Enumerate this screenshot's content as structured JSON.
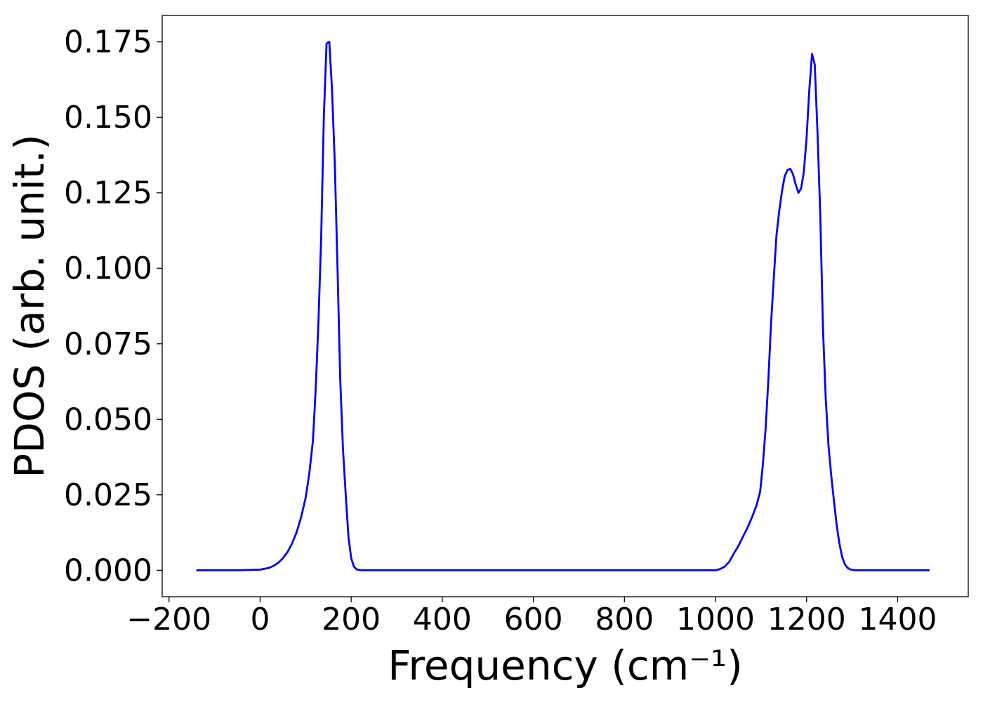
{
  "chart_data": {
    "type": "line",
    "title": "",
    "xlabel": "Frequency (cm⁻¹)",
    "ylabel": "PDOS (arb. unit.)",
    "xlim": [
      -215,
      1555
    ],
    "ylim": [
      -0.00875,
      0.18375
    ],
    "xticks": [
      -200,
      0,
      200,
      400,
      600,
      800,
      1000,
      1200,
      1400
    ],
    "xtick_labels": [
      "−200",
      "0",
      "200",
      "400",
      "600",
      "800",
      "1000",
      "1200",
      "1400"
    ],
    "yticks": [
      0.0,
      0.025,
      0.05,
      0.075,
      0.1,
      0.125,
      0.15,
      0.175
    ],
    "ytick_labels": [
      "0.000",
      "0.025",
      "0.050",
      "0.075",
      "0.100",
      "0.125",
      "0.150",
      "0.175"
    ],
    "grid": false,
    "legend": "none",
    "series": [
      {
        "color": "#0000ff",
        "x": [
          -140,
          -50,
          0,
          20,
          30,
          40,
          50,
          60,
          70,
          80,
          90,
          100,
          108,
          116,
          122,
          128,
          134,
          140,
          146,
          152,
          158,
          164,
          170,
          176,
          182,
          188,
          194,
          200,
          206,
          212,
          218,
          224,
          230,
          236,
          245,
          270,
          400,
          600,
          800,
          1000,
          1010,
          1020,
          1030,
          1040,
          1050,
          1060,
          1070,
          1080,
          1090,
          1098,
          1104,
          1110,
          1116,
          1122,
          1128,
          1134,
          1140,
          1146,
          1152,
          1158,
          1164,
          1170,
          1176,
          1182,
          1188,
          1194,
          1200,
          1206,
          1212,
          1218,
          1224,
          1230,
          1236,
          1242,
          1248,
          1254,
          1260,
          1266,
          1272,
          1278,
          1284,
          1290,
          1296,
          1302,
          1308,
          1314,
          1320,
          1326,
          1332,
          1338,
          1344,
          1350,
          1356,
          1362,
          1370,
          1400,
          1470
        ],
        "y": [
          0,
          0,
          0.0002,
          0.0008,
          0.0015,
          0.0025,
          0.004,
          0.006,
          0.0088,
          0.0125,
          0.0175,
          0.024,
          0.032,
          0.043,
          0.06,
          0.082,
          0.11,
          0.15,
          0.1745,
          0.175,
          0.159,
          0.135,
          0.1,
          0.063,
          0.04,
          0.025,
          0.011,
          0.004,
          0.0012,
          0.0003,
          0.0001,
          0,
          0,
          0,
          0,
          0,
          0,
          0,
          0,
          0,
          0.0004,
          0.0012,
          0.0028,
          0.0055,
          0.008,
          0.011,
          0.014,
          0.0175,
          0.0215,
          0.026,
          0.035,
          0.047,
          0.063,
          0.082,
          0.097,
          0.111,
          0.119,
          0.1255,
          0.1305,
          0.1325,
          0.133,
          0.1312,
          0.1278,
          0.125,
          0.1265,
          0.132,
          0.1435,
          0.159,
          0.171,
          0.1675,
          0.145,
          0.118,
          0.08,
          0.057,
          0.0415,
          0.0315,
          0.023,
          0.015,
          0.009,
          0.0045,
          0.002,
          0.0008,
          0.0003,
          0.0001,
          0,
          0,
          0,
          0,
          0,
          0,
          0,
          0,
          0,
          0,
          0,
          0,
          0
        ]
      }
    ]
  }
}
